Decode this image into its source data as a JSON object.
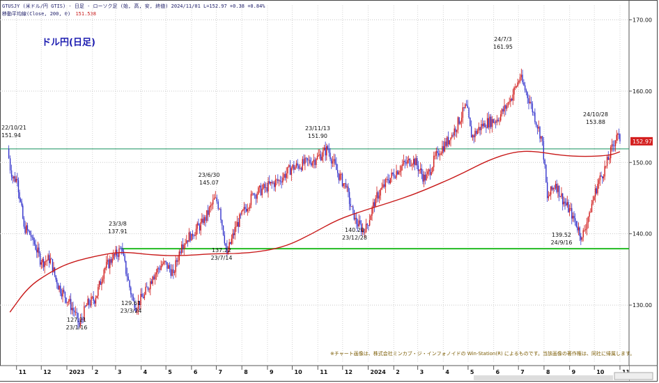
{
  "header": {
    "line1": "GTUSJY (米ドル/円 GTIS) - 日足 - ローソク足 (始, 高, 安, 終値)   2024/11/01 L=152.97 +0.38 +0.84%",
    "line2_label": "移動平均線(Close, 200, 0)",
    "line2_value": "151.538"
  },
  "title": "ドル円(日足)",
  "credit": "※チャート画像は、株式会社ミンカブ・ジ・インフォノイドの Win-Station(R) によるものです。当該画像の著作権は、同社に帰属します。",
  "colors": {
    "candle": "#3333cc",
    "candle_down": "#d01818",
    "ma": "#c81818",
    "resistance": "#2e9e6e",
    "support": "#22bb22",
    "price_tag": "#d42020"
  },
  "chart_data": {
    "type": "candlestick",
    "y_axis_ticks": [
      "170.00",
      "160.00",
      "150.00",
      "140.00",
      "130.00"
    ],
    "ylim": [
      122,
      172
    ],
    "x_axis_labels": [
      "11",
      "12",
      "2023",
      "2",
      "3",
      "4",
      "5",
      "6",
      "7",
      "8",
      "9",
      "10",
      "11",
      "12",
      "2024",
      "2",
      "3",
      "4",
      "5",
      "6",
      "7",
      "8",
      "9",
      "10",
      "11"
    ],
    "current_price": "152.97",
    "series": [
      {
        "type": "line",
        "name": "移動平均線(Close, 200, 0)",
        "x": [
          "2022-10-24",
          "2022-11-15",
          "2022-12-10",
          "2023-01-05",
          "2023-02-10",
          "2023-03-10",
          "2023-04-15",
          "2023-05-20",
          "2023-06-25",
          "2023-07-25",
          "2023-08-25",
          "2023-09-25",
          "2023-10-25",
          "2023-11-25",
          "2023-12-28",
          "2024-01-25",
          "2024-02-25",
          "2024-03-25",
          "2024-04-25",
          "2024-05-25",
          "2024-06-25",
          "2024-07-20",
          "2024-08-20",
          "2024-09-20",
          "2024-10-20",
          "2024-11-01"
        ],
        "y": [
          129.0,
          132.5,
          134.5,
          136.0,
          137.0,
          137.5,
          137.0,
          136.9,
          137.2,
          137.2,
          137.5,
          138.3,
          140.0,
          142.0,
          143.3,
          144.3,
          145.5,
          146.9,
          148.5,
          150.3,
          151.5,
          151.6,
          151.0,
          150.8,
          151.0,
          151.5
        ]
      },
      {
        "type": "ohlc_path",
        "name": "USDJPY",
        "x": [
          "2022-10-21",
          "2022-10-26",
          "2022-11-02",
          "2022-11-10",
          "2022-11-20",
          "2022-12-01",
          "2022-12-12",
          "2022-12-20",
          "2023-01-03",
          "2023-01-10",
          "2023-01-16",
          "2023-01-25",
          "2023-02-05",
          "2023-02-15",
          "2023-02-25",
          "2023-03-08",
          "2023-03-15",
          "2023-03-24",
          "2023-04-05",
          "2023-04-15",
          "2023-04-28",
          "2023-05-10",
          "2023-05-20",
          "2023-06-01",
          "2023-06-15",
          "2023-06-30",
          "2023-07-05",
          "2023-07-14",
          "2023-07-25",
          "2023-08-05",
          "2023-08-15",
          "2023-08-30",
          "2023-09-15",
          "2023-09-30",
          "2023-10-15",
          "2023-10-30",
          "2023-11-13",
          "2023-11-25",
          "2023-12-05",
          "2023-12-15",
          "2023-12-28",
          "2024-01-10",
          "2024-01-25",
          "2024-02-10",
          "2024-02-25",
          "2024-03-10",
          "2024-03-25",
          "2024-04-10",
          "2024-04-29",
          "2024-05-05",
          "2024-05-20",
          "2024-06-05",
          "2024-06-20",
          "2024-07-03",
          "2024-07-15",
          "2024-07-30",
          "2024-08-05",
          "2024-08-15",
          "2024-08-25",
          "2024-09-05",
          "2024-09-16",
          "2024-09-25",
          "2024-10-05",
          "2024-10-15",
          "2024-10-28",
          "2024-11-01"
        ],
        "y": [
          151.9,
          148.0,
          147.5,
          141.0,
          139.5,
          136.0,
          136.5,
          133.0,
          130.5,
          129.0,
          127.2,
          130.0,
          131.0,
          135.0,
          136.5,
          137.9,
          134.0,
          129.6,
          131.5,
          134.0,
          136.0,
          134.5,
          138.5,
          140.0,
          141.5,
          145.1,
          143.5,
          137.2,
          141.0,
          143.5,
          145.5,
          146.5,
          147.5,
          149.2,
          149.8,
          150.5,
          151.9,
          148.5,
          146.5,
          142.0,
          140.2,
          145.0,
          147.5,
          149.5,
          150.5,
          147.5,
          151.3,
          153.5,
          158.0,
          153.5,
          155.5,
          156.0,
          158.5,
          161.95,
          158.5,
          153.0,
          145.0,
          147.0,
          144.5,
          142.5,
          139.5,
          143.0,
          147.0,
          149.5,
          153.88,
          152.97
        ]
      }
    ],
    "annotations": [
      {
        "date": "22/10/21",
        "price": "151.94"
      },
      {
        "date": "23/1/16",
        "price": "127.21"
      },
      {
        "date": "23/3/8",
        "price": "137.91"
      },
      {
        "date": "23/3/24",
        "price": "129.61"
      },
      {
        "date": "23/6/30",
        "price": "145.07"
      },
      {
        "date": "23/7/14",
        "price": "137.22"
      },
      {
        "date": "23/11/13",
        "price": "151.90"
      },
      {
        "date": "23/12/28",
        "price": "140.20"
      },
      {
        "date": "24/7/3",
        "price": "161.95"
      },
      {
        "date": "24/9/16",
        "price": "139.52"
      },
      {
        "date": "24/10/28",
        "price": "153.88"
      }
    ],
    "horizontal_lines": [
      {
        "name": "resistance",
        "y": 151.9
      },
      {
        "name": "support",
        "y": 137.9
      }
    ]
  }
}
